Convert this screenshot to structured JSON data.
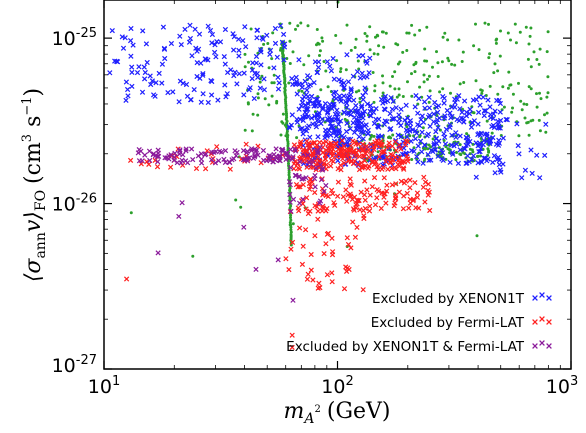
{
  "chart_data": {
    "type": "scatter",
    "xlabel": "m_{A^2} (GeV)",
    "xlabel_parts": {
      "symbol": "m",
      "subscript": "A",
      "superscript": "2",
      "unit": "(GeV)"
    },
    "ylabel": "⟨σ_ann v⟩_FO (cm³ s⁻¹)",
    "ylabel_parts": {
      "symbol": "⟨σ",
      "subscript": "ann",
      "mid": "v⟩",
      "subscript2": "FO",
      "unit_open": "(cm",
      "unit_sup1": "3",
      "unit_mid": " s",
      "unit_sup2": "−1",
      "unit_close": ")"
    },
    "xscale": "log",
    "yscale": "log",
    "xlim": [
      10,
      1000
    ],
    "ylim": [
      1e-27,
      1.7e-25
    ],
    "xticks": [
      {
        "value": 10,
        "base": "10",
        "exp": "1"
      },
      {
        "value": 100,
        "base": "10",
        "exp": "2"
      },
      {
        "value": 1000,
        "base": "10",
        "exp": "3"
      }
    ],
    "yticks": [
      {
        "value": 1e-27,
        "base": "10",
        "exp": "-27"
      },
      {
        "value": 1e-26,
        "base": "10",
        "exp": "-26"
      },
      {
        "value": 1e-25,
        "base": "10",
        "exp": "-25"
      }
    ],
    "legend_position": "bottom-right",
    "series": [
      {
        "name": "allowed",
        "color": "#2ca02c",
        "marker": "dot",
        "in_legend": false
      },
      {
        "name": "Excluded by XENON1T",
        "color": "#1f1fff",
        "marker": "x",
        "in_legend": true
      },
      {
        "name": "Excluded by Fermi-LAT",
        "color": "#ff2020",
        "marker": "x",
        "in_legend": true
      },
      {
        "name": "Excluded by XENON1T & Fermi-LAT",
        "color": "#8b1a9b",
        "marker": "x",
        "in_legend": true
      }
    ],
    "point_clouds": [
      {
        "series": 1,
        "region": "upper band",
        "x": [
          10.5,
          60
        ],
        "y": [
          4e-26,
          1.2e-25
        ],
        "count": 150
      },
      {
        "series": 1,
        "region": "dense arm",
        "x": [
          62,
          140
        ],
        "y": [
          2.6e-26,
          8e-26
        ],
        "count": 130
      },
      {
        "series": 1,
        "region": "right cluster",
        "x": [
          70,
          500
        ],
        "y": [
          1.7e-26,
          4.5e-26
        ],
        "count": 420
      },
      {
        "series": 1,
        "region": "right tail",
        "x": [
          300,
          800
        ],
        "y": [
          1.4e-26,
          3.5e-26
        ],
        "count": 40
      },
      {
        "series": 0,
        "region": "upper scatter",
        "x": [
          40,
          800
        ],
        "y": [
          2.5e-26,
          1.25e-25
        ],
        "count": 330
      },
      {
        "series": 0,
        "region": "right cluster",
        "x": [
          100,
          450
        ],
        "y": [
          1.8e-26,
          2.6e-26
        ],
        "count": 150
      },
      {
        "series": 0,
        "region": "sparse low",
        "x": [
          12,
          400
        ],
        "y": [
          5e-27,
          2e-26
        ],
        "count": 12
      },
      {
        "series": 2,
        "region": "plateau",
        "x": [
          64,
          200
        ],
        "y": [
          1.6e-26,
          2.4e-26
        ],
        "count": 230
      },
      {
        "series": 2,
        "region": "below plateau",
        "x": [
          65,
          250
        ],
        "y": [
          9e-27,
          1.5e-26
        ],
        "count": 120
      },
      {
        "series": 2,
        "region": "low tail",
        "x": [
          60,
          130
        ],
        "y": [
          3e-27,
          9e-27
        ],
        "count": 45
      },
      {
        "series": 2,
        "region": "left scatter",
        "x": [
          12,
          60
        ],
        "y": [
          1.6e-26,
          2.3e-26
        ],
        "count": 30
      },
      {
        "series": 3,
        "region": "horizontal band",
        "x": [
          14,
          62
        ],
        "y": [
          1.75e-26,
          2.15e-26
        ],
        "count": 110
      },
      {
        "series": 3,
        "region": "near resonance",
        "x": [
          62,
          90
        ],
        "y": [
          1e-26,
          2.2e-26
        ],
        "count": 40
      },
      {
        "series": 3,
        "region": "sparse",
        "x": [
          13,
          70
        ],
        "y": [
          3.5e-27,
          1.2e-26
        ],
        "count": 8
      }
    ],
    "resonance_curve": {
      "series": 0,
      "points": [
        [
          58.0,
          9.5e-26
        ],
        [
          58.3,
          8.5e-26
        ],
        [
          58.6,
          7.5e-26
        ],
        [
          59.0,
          6.5e-26
        ],
        [
          59.4,
          5.5e-26
        ],
        [
          59.8,
          4.5e-26
        ],
        [
          60.3,
          3.6e-26
        ],
        [
          60.8,
          2.9e-26
        ],
        [
          61.3,
          2.3e-26
        ],
        [
          61.8,
          1.8e-26
        ],
        [
          62.2,
          1.4e-26
        ],
        [
          62.6,
          1.1e-26
        ],
        [
          62.9,
          8.5e-27
        ],
        [
          63.2,
          6.5e-27
        ],
        [
          63.4,
          5.5e-27
        ]
      ]
    },
    "scattered_outliers": [
      {
        "series": 0,
        "x": 100.5,
        "y": 1.65e-25
      },
      {
        "series": 0,
        "x": 24,
        "y": 4.8e-27
      },
      {
        "series": 0,
        "x": 110,
        "y": 5.5e-27
      },
      {
        "series": 2,
        "x": 64,
        "y": 1.6e-27
      },
      {
        "series": 2,
        "x": 64,
        "y": 1.35e-27
      },
      {
        "series": 2,
        "x": 12.5,
        "y": 3.5e-27
      },
      {
        "series": 3,
        "x": 64.5,
        "y": 2.6e-27
      }
    ]
  }
}
